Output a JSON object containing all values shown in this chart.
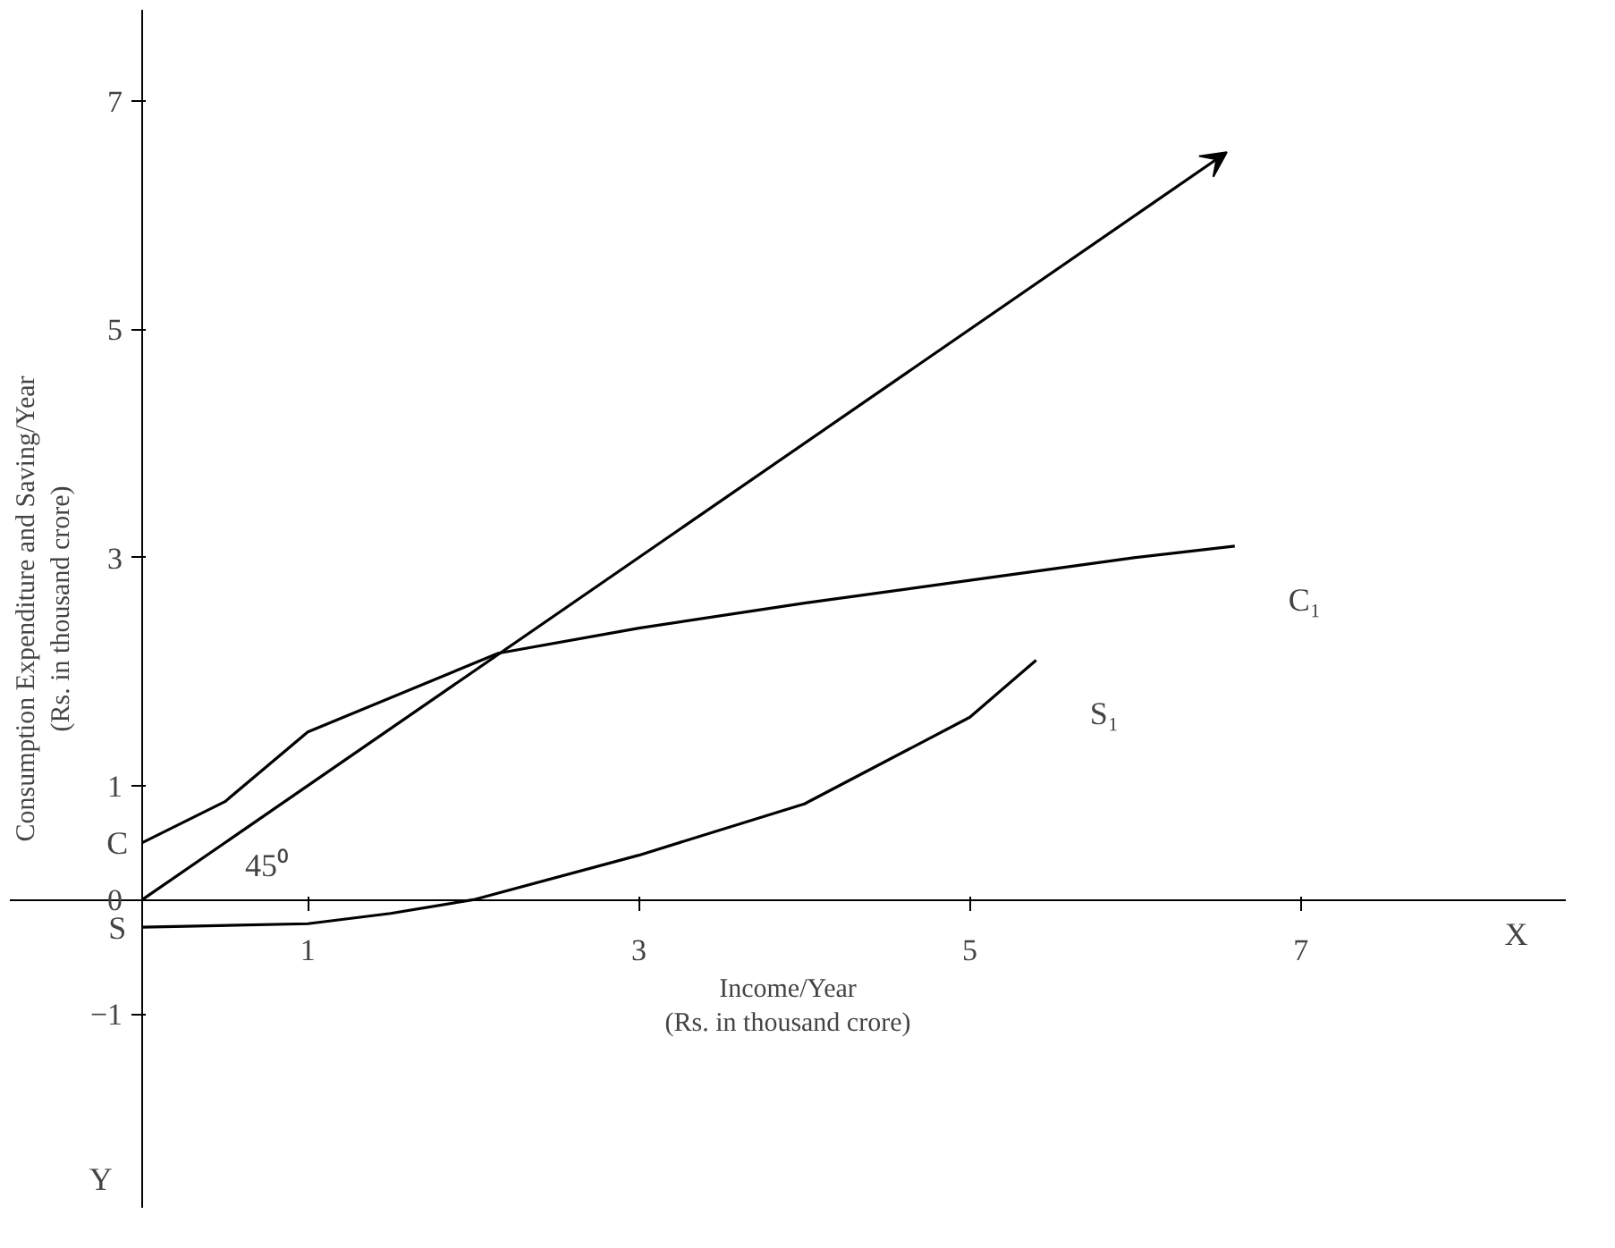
{
  "chart_data": {
    "type": "line",
    "xlabel": "Income/Year\n(Rs. in thousand crore)",
    "ylabel": "Consumption Expenditure and Saving/Year\n(Rs. in thousand crore)",
    "xlim": [
      -0.8,
      8.6
    ],
    "ylim": [
      -2.7,
      7.8
    ],
    "xticks": [
      1,
      3,
      5,
      7
    ],
    "yticks": [
      -1,
      0,
      1,
      3,
      5,
      7
    ],
    "grid": false,
    "marker": "none",
    "line_style": "solid",
    "series": [
      {
        "name": "C₁",
        "color": "#000000",
        "x": [
          0,
          0.5,
          1,
          2.15,
          3,
          4,
          5,
          6,
          6.6
        ],
        "values": [
          0.5,
          0.86,
          1.47,
          2.16,
          2.38,
          2.6,
          2.8,
          3.0,
          3.1
        ]
      },
      {
        "name": "S₁",
        "color": "#000000",
        "x": [
          0,
          1,
          1.5,
          2,
          3,
          4,
          5,
          5.4
        ],
        "values": [
          -0.24,
          -0.21,
          -0.12,
          0,
          0.39,
          0.84,
          1.6,
          2.1
        ]
      }
    ],
    "annotations": [
      "45⁰",
      "C",
      "S",
      "X",
      "Y"
    ]
  }
}
